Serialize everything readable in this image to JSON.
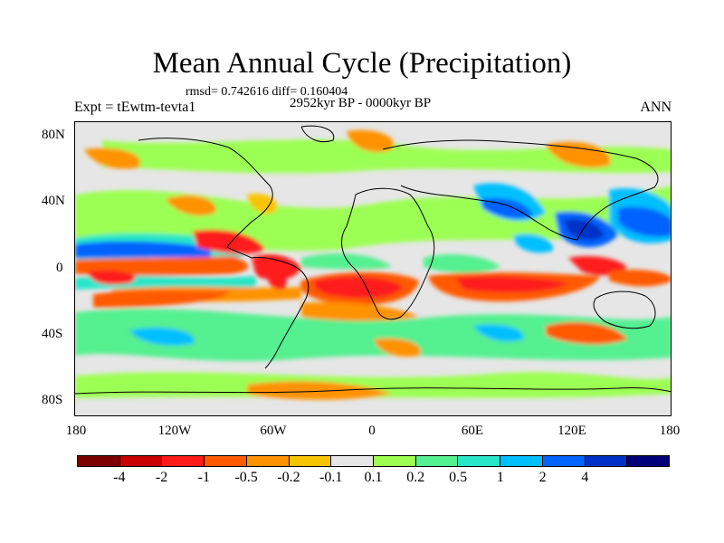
{
  "title": "Mean Annual Cycle (Precipitation)",
  "stats_line": "rmsd= 0.742616  diff= 0.160404",
  "period": "2952kyr BP - 0000kyr BP",
  "experiment": "Expt = tEwtm-tevta1",
  "season": "ANN",
  "y_axis_labels": [
    "80N",
    "40N",
    "0",
    "40S",
    "80S"
  ],
  "x_axis_labels": [
    "180",
    "120W",
    "60W",
    "0",
    "60E",
    "120E",
    "180"
  ],
  "colorbar": {
    "colors": [
      "#7d0000",
      "#c80000",
      "#ff1a1a",
      "#ff5a00",
      "#ff9200",
      "#f7c500",
      "#e6e6e6",
      "#9cff52",
      "#55f090",
      "#28e6c8",
      "#00bfff",
      "#0064ff",
      "#0030c8",
      "#000078"
    ],
    "labels": [
      "-4",
      "-2",
      "-1",
      "-0.5",
      "-0.2",
      "-0.1",
      "0.1",
      "0.2",
      "0.5",
      "1",
      "2",
      "4"
    ]
  },
  "chart_data": {
    "type": "heatmap",
    "title": "Mean Annual Cycle (Precipitation)",
    "variable": "Precipitation difference",
    "xlim": [
      -180,
      180
    ],
    "ylim": [
      -90,
      90
    ],
    "levels": [
      -4,
      -2,
      -1,
      -0.5,
      -0.2,
      -0.1,
      0.1,
      0.2,
      0.5,
      1,
      2,
      4
    ]
  }
}
